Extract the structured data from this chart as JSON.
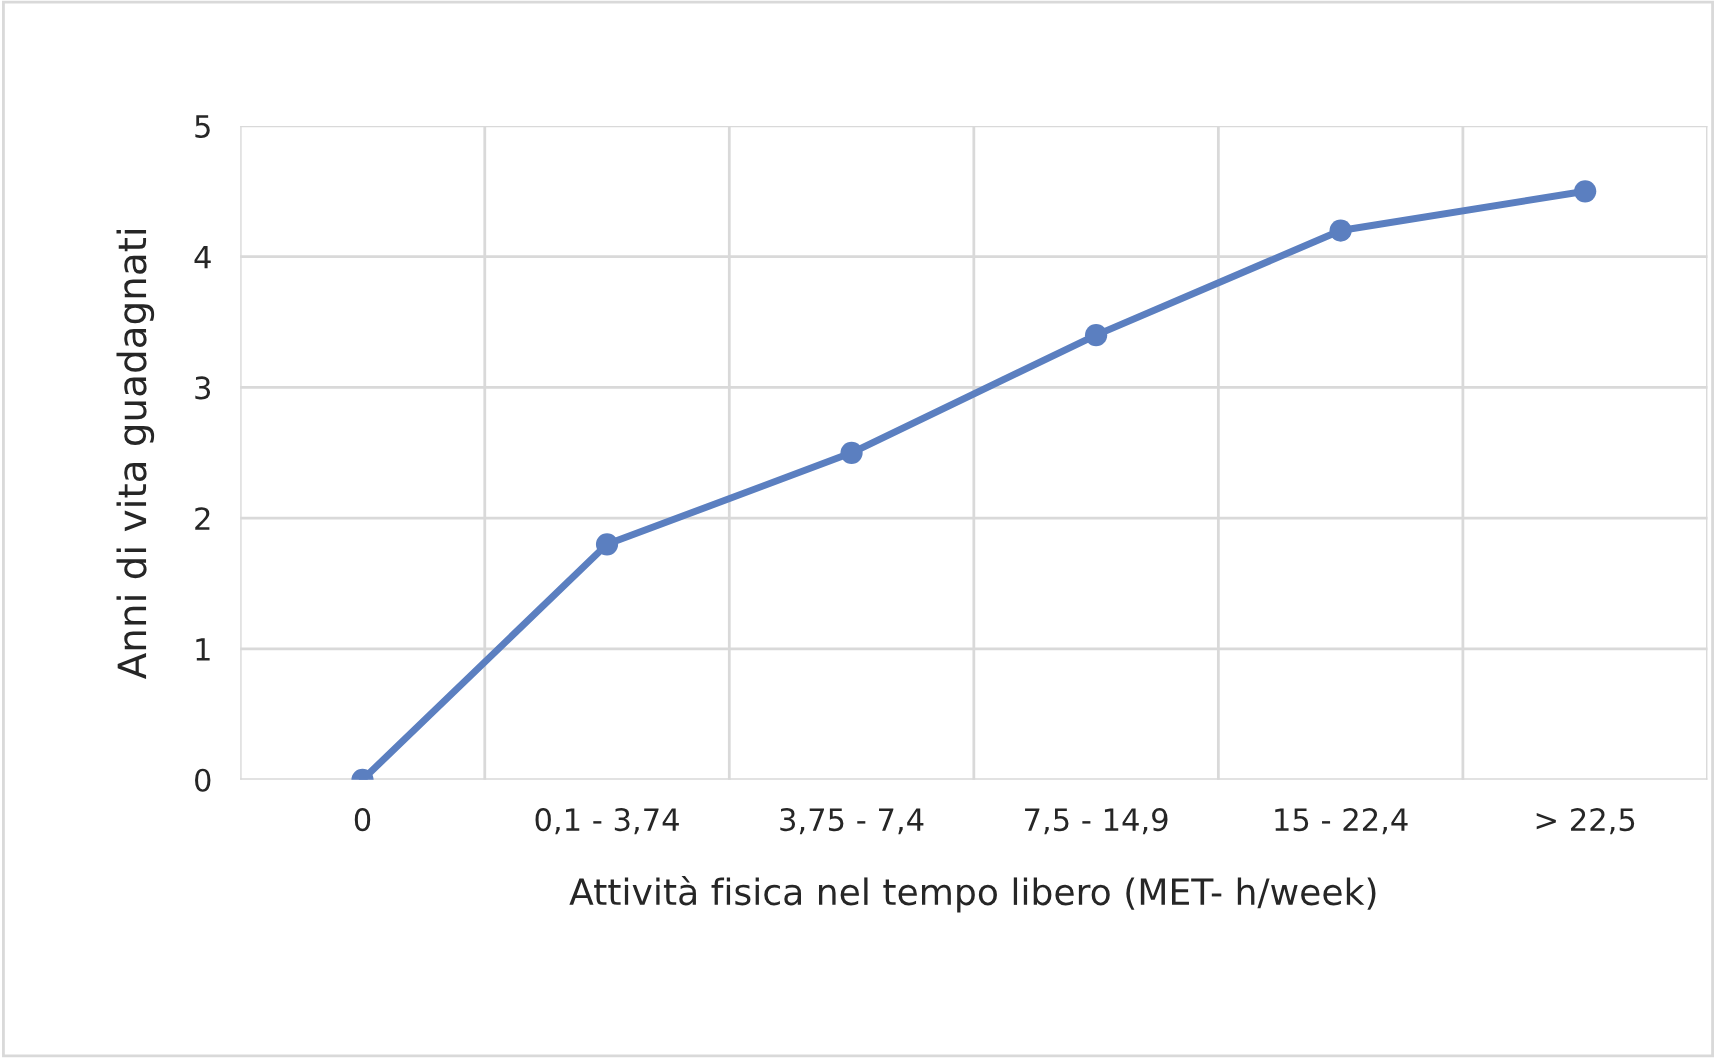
{
  "chart_data": {
    "type": "line",
    "xlabel": "Attività fisica nel tempo libero (MET- h/week)",
    "ylabel": "Anni di vita guadagnati",
    "categories": [
      "0",
      "0,1 - 3,74",
      "3,75 - 7,4",
      "7,5 - 14,9",
      "15 - 22,4",
      "> 22,5"
    ],
    "series": [
      {
        "color": "#5b7fc0",
        "values": [
          0,
          1.8,
          2.5,
          3.4,
          4.2,
          4.5
        ]
      }
    ],
    "ylim": [
      0,
      5
    ],
    "yticks": [
      0,
      1,
      2,
      3,
      4,
      5
    ],
    "grid": true,
    "marker": "circle",
    "line_style": "solid"
  }
}
